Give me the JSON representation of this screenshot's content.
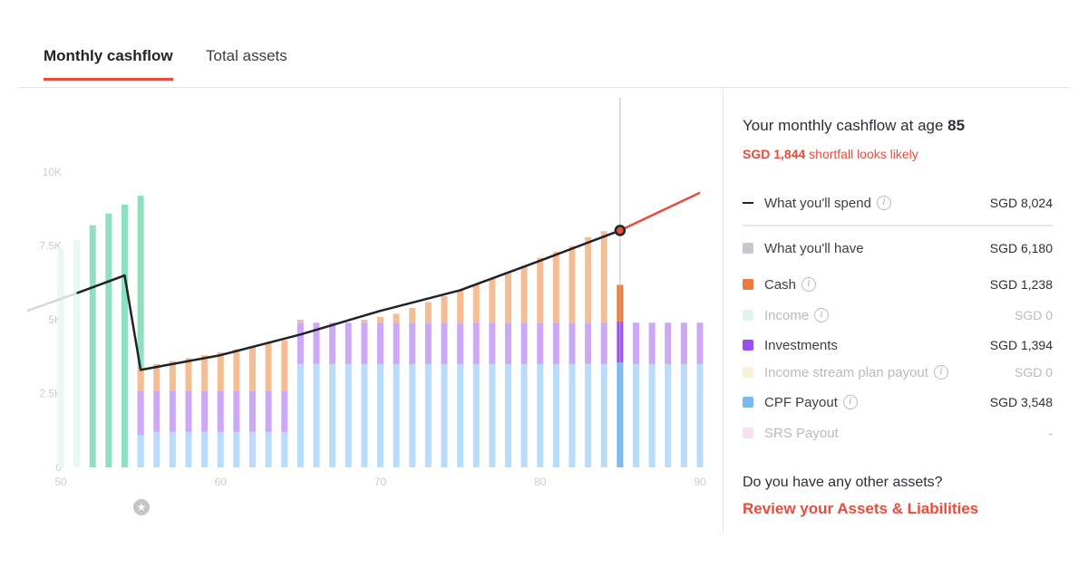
{
  "tabs": [
    {
      "label": "Monthly cashflow",
      "active": true
    },
    {
      "label": "Total assets",
      "active": false
    }
  ],
  "panel": {
    "title_prefix": "Your monthly cashflow at age ",
    "age": "85",
    "shortfall_amount": "SGD 1,844",
    "shortfall_text": " shortfall looks likely",
    "rows": [
      {
        "label": "What you'll spend",
        "value": "SGD 8,024",
        "marker": "line",
        "info": true,
        "muted": false,
        "color": "#1f2329"
      },
      {
        "label": "What you'll have",
        "value": "SGD 6,180",
        "marker": "swatch",
        "info": false,
        "muted": false,
        "color": "#c5c8cc"
      },
      {
        "label": "Cash",
        "value": "SGD 1,238",
        "marker": "swatch",
        "info": true,
        "muted": false,
        "color": "#ec7a3c"
      },
      {
        "label": "Income",
        "value": "SGD 0",
        "marker": "swatch",
        "info": true,
        "muted": true,
        "color": "#dff5ec"
      },
      {
        "label": "Investments",
        "value": "SGD 1,394",
        "marker": "swatch",
        "info": false,
        "muted": false,
        "color": "#9b4ff0"
      },
      {
        "label": "Income stream plan payout",
        "value": "SGD 0",
        "marker": "swatch",
        "info": true,
        "muted": true,
        "color": "#fdf0d9"
      },
      {
        "label": "CPF Payout",
        "value": "SGD 3,548",
        "marker": "swatch",
        "info": true,
        "muted": false,
        "color": "#79b9f2"
      },
      {
        "label": "SRS Payout",
        "value": "-",
        "marker": "swatch",
        "info": false,
        "muted": true,
        "color": "#fbe0f3"
      }
    ],
    "question": "Do you have any other assets?",
    "review_link": "Review your Assets & Liabilities"
  },
  "chart_data": {
    "type": "bar",
    "stacked": true,
    "x_ticks": [
      50,
      60,
      70,
      80,
      90
    ],
    "y_ticks": [
      {
        "value": 0,
        "label": "0"
      },
      {
        "value": 2500,
        "label": "2.5K"
      },
      {
        "value": 5000,
        "label": "5K"
      },
      {
        "value": 7500,
        "label": "7.5K"
      },
      {
        "value": 10000,
        "label": "10K"
      }
    ],
    "xlim": [
      49,
      90
    ],
    "ylim": [
      0,
      10000
    ],
    "selected_age": 85,
    "income_bars": [
      {
        "age": 49,
        "value": 7400
      },
      {
        "age": 50,
        "value": 7700
      },
      {
        "age": 51,
        "value": 8200
      },
      {
        "age": 52,
        "value": 8600
      },
      {
        "age": 53,
        "value": 8900
      },
      {
        "age": 54,
        "value": 9200
      }
    ],
    "income_bars_faded_until_age": 50,
    "stack_order": [
      "CPF Payout",
      "Investments",
      "Cash"
    ],
    "stack_colors": {
      "CPF Payout": "#b8dcfa",
      "Investments": "#cda8f6",
      "Cash": "#f5bd94"
    },
    "stack_colors_selected": {
      "CPF Payout": "#79b9f2",
      "Investments": "#9b4ff0",
      "Cash": "#ec7a3c"
    },
    "spend_series_start": {
      "age": 49,
      "value": 5300
    },
    "retirement_bars": [
      {
        "age": 55,
        "cpf": 1100,
        "investments": 1500,
        "cash": 800
      },
      {
        "age": 56,
        "cpf": 1200,
        "investments": 1400,
        "cash": 900
      },
      {
        "age": 57,
        "cpf": 1200,
        "investments": 1400,
        "cash": 1000
      },
      {
        "age": 58,
        "cpf": 1200,
        "investments": 1400,
        "cash": 1100
      },
      {
        "age": 59,
        "cpf": 1200,
        "investments": 1400,
        "cash": 1200
      },
      {
        "age": 60,
        "cpf": 1200,
        "investments": 1400,
        "cash": 1300
      },
      {
        "age": 61,
        "cpf": 1200,
        "investments": 1400,
        "cash": 1400
      },
      {
        "age": 62,
        "cpf": 1200,
        "investments": 1400,
        "cash": 1500
      },
      {
        "age": 63,
        "cpf": 1200,
        "investments": 1400,
        "cash": 1600
      },
      {
        "age": 64,
        "cpf": 1200,
        "investments": 1400,
        "cash": 1700
      },
      {
        "age": 65,
        "cpf": 3500,
        "investments": 1400,
        "cash": 100
      },
      {
        "age": 66,
        "cpf": 3500,
        "investments": 1400,
        "cash": 0
      },
      {
        "age": 67,
        "cpf": 3500,
        "investments": 1400,
        "cash": 0
      },
      {
        "age": 68,
        "cpf": 3500,
        "investments": 1400,
        "cash": 0
      },
      {
        "age": 69,
        "cpf": 3500,
        "investments": 1400,
        "cash": 100
      },
      {
        "age": 70,
        "cpf": 3500,
        "investments": 1400,
        "cash": 200
      },
      {
        "age": 71,
        "cpf": 3500,
        "investments": 1400,
        "cash": 300
      },
      {
        "age": 72,
        "cpf": 3500,
        "investments": 1400,
        "cash": 500
      },
      {
        "age": 73,
        "cpf": 3500,
        "investments": 1400,
        "cash": 700
      },
      {
        "age": 74,
        "cpf": 3500,
        "investments": 1400,
        "cash": 900
      },
      {
        "age": 75,
        "cpf": 3500,
        "investments": 1400,
        "cash": 1100
      },
      {
        "age": 76,
        "cpf": 3500,
        "investments": 1400,
        "cash": 1300
      },
      {
        "age": 77,
        "cpf": 3500,
        "investments": 1400,
        "cash": 1500
      },
      {
        "age": 78,
        "cpf": 3500,
        "investments": 1400,
        "cash": 1700
      },
      {
        "age": 79,
        "cpf": 3500,
        "investments": 1400,
        "cash": 1900
      },
      {
        "age": 80,
        "cpf": 3500,
        "investments": 1400,
        "cash": 2200
      },
      {
        "age": 81,
        "cpf": 3500,
        "investments": 1400,
        "cash": 2400
      },
      {
        "age": 82,
        "cpf": 3500,
        "investments": 1400,
        "cash": 2600
      },
      {
        "age": 83,
        "cpf": 3500,
        "investments": 1400,
        "cash": 2900
      },
      {
        "age": 84,
        "cpf": 3500,
        "investments": 1400,
        "cash": 3100
      },
      {
        "age": 85,
        "cpf": 3548,
        "investments": 1394,
        "cash": 1238
      },
      {
        "age": 86,
        "cpf": 3500,
        "investments": 1400,
        "cash": 0
      },
      {
        "age": 87,
        "cpf": 3500,
        "investments": 1400,
        "cash": 0
      },
      {
        "age": 88,
        "cpf": 3500,
        "investments": 1400,
        "cash": 0
      },
      {
        "age": 89,
        "cpf": 3500,
        "investments": 1400,
        "cash": 0
      },
      {
        "age": 90,
        "cpf": 3500,
        "investments": 1400,
        "cash": 0
      }
    ],
    "spend_series": [
      {
        "age": 51,
        "value": 5900
      },
      {
        "age": 54,
        "value": 6500
      },
      {
        "age": 55,
        "value": 3300
      },
      {
        "age": 60,
        "value": 3800
      },
      {
        "age": 65,
        "value": 4500
      },
      {
        "age": 70,
        "value": 5300
      },
      {
        "age": 75,
        "value": 6000
      },
      {
        "age": 80,
        "value": 7000
      },
      {
        "age": 85,
        "value": 8024
      },
      {
        "age": 90,
        "value": 9300
      }
    ],
    "spend_color": "#1f2329",
    "projection_color": "#e84c3d",
    "faded_segment_color": "#d6d9dc"
  }
}
